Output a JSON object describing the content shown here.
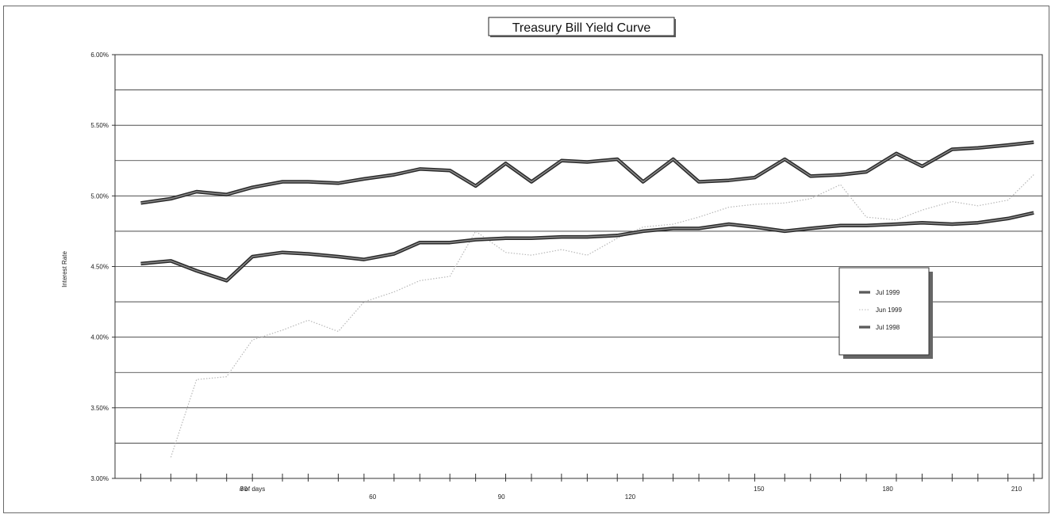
{
  "chart_data": {
    "type": "line",
    "title": "Treasury Bill Yield Curve",
    "xlabel": "# of days",
    "ylabel": "Interest Rate",
    "x_ticks": [
      "30",
      "60",
      "90",
      "120",
      "150",
      "180",
      "210"
    ],
    "y_ticks": [
      "6.00%",
      "5.50%",
      "5.00%",
      "4.50%",
      "4.00%",
      "3.50%",
      "3.00%"
    ],
    "ylim": [
      3.0,
      6.0
    ],
    "xlim": [
      0,
      216
    ],
    "grid": "horizontal",
    "legend_position": "right",
    "x": [
      6,
      13,
      19,
      26,
      32,
      39,
      45,
      52,
      58,
      65,
      71,
      78,
      84,
      91,
      97,
      104,
      110,
      117,
      123,
      130,
      136,
      143,
      149,
      156,
      162,
      169,
      175,
      182,
      188,
      195,
      201,
      208,
      214
    ],
    "series": [
      {
        "name": "Jul 1999",
        "color": "#4a4a4a",
        "style": "thick",
        "values": [
          4.95,
          4.98,
          5.03,
          5.01,
          5.06,
          5.1,
          5.1,
          5.09,
          5.12,
          5.15,
          5.19,
          5.18,
          5.07,
          5.23,
          5.1,
          5.25,
          5.24,
          5.26,
          5.1,
          5.26,
          5.1,
          5.11,
          5.13,
          5.26,
          5.14,
          5.15,
          5.17,
          5.3,
          5.21,
          5.33,
          5.34,
          5.36,
          5.38
        ]
      },
      {
        "name": "Jun 1999",
        "color": "#b8b8b8",
        "style": "dotted",
        "values": [
          null,
          3.15,
          3.7,
          3.72,
          3.98,
          4.05,
          4.12,
          4.04,
          4.25,
          4.32,
          4.4,
          4.43,
          4.75,
          4.6,
          4.58,
          4.62,
          4.58,
          4.7,
          4.78,
          4.8,
          4.85,
          4.92,
          4.94,
          4.95,
          4.98,
          5.08,
          4.85,
          4.83,
          4.9,
          4.96,
          4.93,
          4.97,
          5.15
        ]
      },
      {
        "name": "Jul 1998",
        "color": "#4a4a4a",
        "style": "thick",
        "values": [
          4.52,
          4.54,
          4.47,
          4.4,
          4.57,
          4.6,
          4.59,
          4.57,
          4.55,
          4.59,
          4.67,
          4.67,
          4.69,
          4.7,
          4.7,
          4.71,
          4.71,
          4.72,
          4.75,
          4.77,
          4.77,
          4.8,
          4.78,
          4.75,
          4.77,
          4.79,
          4.79,
          4.8,
          4.81,
          4.8,
          4.81,
          4.84,
          4.88
        ]
      }
    ],
    "legend": [
      "Jul 1999",
      "Jun 1999",
      "Jul 1998"
    ]
  }
}
